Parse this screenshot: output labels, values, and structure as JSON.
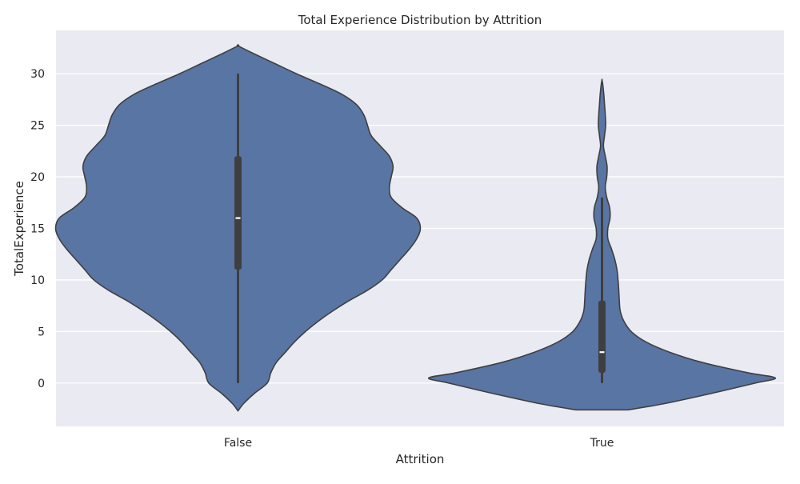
{
  "chart_data": {
    "type": "violin",
    "title": "Total Experience Distribution by Attrition",
    "xlabel": "Attrition",
    "ylabel": "TotalExperience",
    "categories": [
      "False",
      "True"
    ],
    "ylim": [
      -4.2,
      34.2
    ],
    "yticks": [
      0,
      5,
      10,
      15,
      20,
      25,
      30
    ],
    "grid": true,
    "colors": {
      "background": "#eaeaf2",
      "grid": "#ffffff",
      "violin_fill": "#5875a4",
      "violin_edge": "#3f3f3f",
      "box": "#3f3f3f",
      "median": "#ffffff"
    },
    "series": [
      {
        "category": "False",
        "min": 0,
        "q1": 11,
        "median": 16,
        "q3": 22,
        "max": 30,
        "density": [
          [
            -2.7,
            0
          ],
          [
            -2.0,
            0.03
          ],
          [
            -1.0,
            0.09
          ],
          [
            0.0,
            0.16
          ],
          [
            1.0,
            0.18
          ],
          [
            2.0,
            0.21
          ],
          [
            3.0,
            0.26
          ],
          [
            4.0,
            0.31
          ],
          [
            5.0,
            0.37
          ],
          [
            6.0,
            0.44
          ],
          [
            7.0,
            0.52
          ],
          [
            8.0,
            0.61
          ],
          [
            9.0,
            0.71
          ],
          [
            10.0,
            0.79
          ],
          [
            11.0,
            0.84
          ],
          [
            12.0,
            0.89
          ],
          [
            13.0,
            0.94
          ],
          [
            14.0,
            0.98
          ],
          [
            15.0,
            1.0
          ],
          [
            16.0,
            0.98
          ],
          [
            17.0,
            0.9
          ],
          [
            18.0,
            0.84
          ],
          [
            19.0,
            0.83
          ],
          [
            20.0,
            0.84
          ],
          [
            21.0,
            0.85
          ],
          [
            22.0,
            0.83
          ],
          [
            23.0,
            0.78
          ],
          [
            24.0,
            0.73
          ],
          [
            25.0,
            0.71
          ],
          [
            26.0,
            0.69
          ],
          [
            27.0,
            0.65
          ],
          [
            28.0,
            0.57
          ],
          [
            29.0,
            0.45
          ],
          [
            30.0,
            0.32
          ],
          [
            31.0,
            0.2
          ],
          [
            32.0,
            0.08
          ],
          [
            32.7,
            0
          ]
        ]
      },
      {
        "category": "True",
        "min": 0,
        "q1": 1,
        "median": 3,
        "q3": 8,
        "max": 18,
        "density": [
          [
            -2.6,
            0.14
          ],
          [
            -2.0,
            0.34
          ],
          [
            -1.0,
            0.6
          ],
          [
            0.0,
            0.84
          ],
          [
            0.5,
            0.95
          ],
          [
            1.0,
            0.8
          ],
          [
            2.0,
            0.55
          ],
          [
            3.0,
            0.37
          ],
          [
            4.0,
            0.24
          ],
          [
            5.0,
            0.16
          ],
          [
            6.0,
            0.12
          ],
          [
            7.0,
            0.1
          ],
          [
            8.0,
            0.095
          ],
          [
            9.0,
            0.092
          ],
          [
            10.0,
            0.088
          ],
          [
            11.0,
            0.082
          ],
          [
            12.0,
            0.07
          ],
          [
            13.0,
            0.052
          ],
          [
            14.0,
            0.032
          ],
          [
            15.0,
            0.032
          ],
          [
            16.0,
            0.044
          ],
          [
            17.0,
            0.042
          ],
          [
            18.0,
            0.026
          ],
          [
            19.0,
            0.018
          ],
          [
            20.0,
            0.026
          ],
          [
            21.0,
            0.028
          ],
          [
            22.0,
            0.018
          ],
          [
            23.0,
            0.008
          ],
          [
            24.0,
            0.014
          ],
          [
            25.0,
            0.02
          ],
          [
            26.0,
            0.018
          ],
          [
            27.0,
            0.014
          ],
          [
            28.0,
            0.01
          ],
          [
            29.0,
            0.004
          ],
          [
            29.4,
            0
          ]
        ]
      }
    ]
  }
}
